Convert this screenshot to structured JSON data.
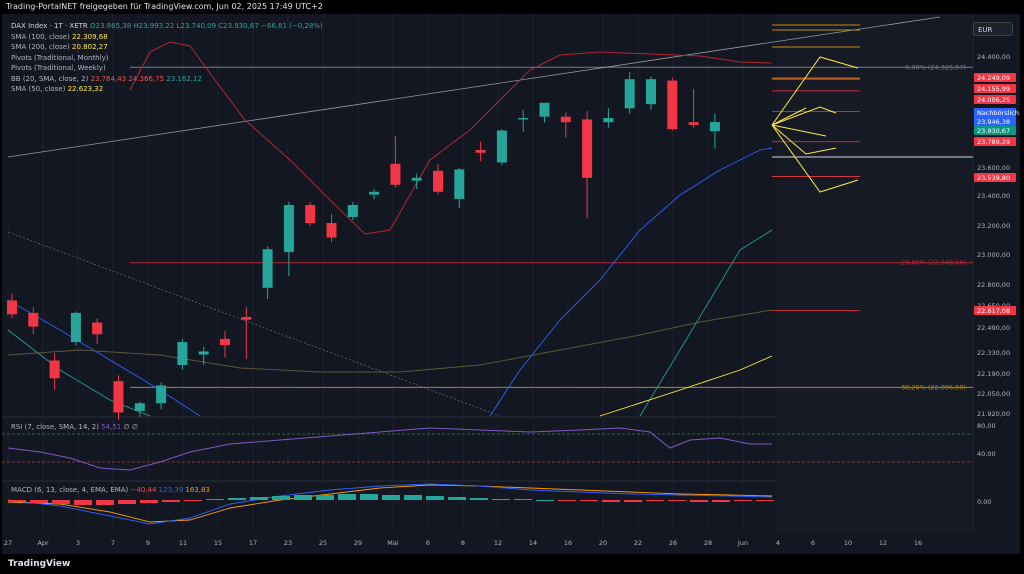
{
  "header": {
    "title": "Trading-PortalNET freigegeben für TradingView.com, Jun 02, 2025 17:49 UTC+2"
  },
  "footer": {
    "brand": "TradingView"
  },
  "legend": {
    "symbol": "DAX Index · 1T · XETR",
    "ohlc": "O23.865,38 H23.993,22 L23.740,09 C23.930,67 −66,81 (−0,28%)",
    "sma100_label": "SMA (100, close)",
    "sma100_value": "22.309,68",
    "sma200_label": "SMA (200, close)",
    "sma200_value": "20.802,27",
    "pivots_monthly": "Pivots (Traditional, Monthly)",
    "pivots_weekly": "Pivots (Traditional, Weekly)",
    "bb_label": "BB (20, SMA, close, 2)",
    "bb_v1": "23.764,43",
    "bb_v2": "24.366,75",
    "bb_v3": "23.162,12",
    "sma50_label": "SMA (50, close)",
    "sma50_value": "22.623,32"
  },
  "currency_button": "EUR",
  "rsi": {
    "label": "RSI (7, close, SMA, 14, 2)",
    "value": "54,51",
    "extra": "∅ ∅",
    "ticks": [
      "80,00",
      "40,00"
    ]
  },
  "macd": {
    "label": "MACD (6, 13, close, 4, EMA, EMA)",
    "v1": "−40,44",
    "v2": "123,39",
    "v3": "163,83",
    "ticks": [
      "0,00"
    ]
  },
  "fib": {
    "f0": "0,00% (24.325,97)",
    "f236": "23,60% (22.948,66)",
    "f382": "38,20% (22.096,60)"
  },
  "price_tags": [
    {
      "text": "24.249,09",
      "color": "#f23645"
    },
    {
      "text": "24.155,99",
      "color": "#f23645"
    },
    {
      "text": "24.006,25",
      "color": "#f23645"
    },
    {
      "text": "Nachbörslich",
      "color": "#2962ff"
    },
    {
      "text": "23.946,38",
      "color": "#2962ff"
    },
    {
      "text": "23.930,67",
      "color": "#089981"
    },
    {
      "text": "23.789,29",
      "color": "#f23645"
    },
    {
      "text": "23.539,80",
      "color": "#f23645"
    },
    {
      "text": "22.617,08",
      "color": "#f23645"
    }
  ],
  "chart_data": {
    "type": "candlestick",
    "title": "DAX Index · 1T · XETR",
    "ylim": [
      21920,
      24540
    ],
    "y_ticks": [
      "24.400,00",
      "23.600,00",
      "23.400,00",
      "23.200,00",
      "23.000,00",
      "22.800,00",
      "22.650,00",
      "22.490,00",
      "22.330,00",
      "22.190,00",
      "22.050,00",
      "21.920,00"
    ],
    "y_tick_values": [
      24400,
      23600,
      23400,
      23200,
      23000,
      22800,
      22650,
      22490,
      22330,
      22190,
      22050,
      21920
    ],
    "x_ticks": [
      "27",
      "Apr",
      "3",
      "7",
      "9",
      "11",
      "15",
      "17",
      "23",
      "25",
      "29",
      "Mai",
      "6",
      "8",
      "12",
      "14",
      "16",
      "20",
      "22",
      "26",
      "28",
      "Jun",
      "4",
      "6",
      "10",
      "12",
      "16"
    ],
    "candles": [
      {
        "o": 22690,
        "h": 22740,
        "l": 22560,
        "c": 22590
      },
      {
        "o": 22600,
        "h": 22640,
        "l": 22450,
        "c": 22500
      },
      {
        "o": 22280,
        "h": 22330,
        "l": 22080,
        "c": 22160
      },
      {
        "o": 22400,
        "h": 22610,
        "l": 22380,
        "c": 22600
      },
      {
        "o": 22530,
        "h": 22560,
        "l": 22390,
        "c": 22450
      },
      {
        "o": 22140,
        "h": 22180,
        "l": 21880,
        "c": 21930
      },
      {
        "o": 21940,
        "h": 22000,
        "l": 21900,
        "c": 21990
      },
      {
        "o": 21990,
        "h": 22130,
        "l": 21950,
        "c": 22110
      },
      {
        "o": 22250,
        "h": 22420,
        "l": 22220,
        "c": 22400
      },
      {
        "o": 22320,
        "h": 22370,
        "l": 22250,
        "c": 22340
      },
      {
        "o": 22420,
        "h": 22470,
        "l": 22300,
        "c": 22380
      },
      {
        "o": 22570,
        "h": 22640,
        "l": 22290,
        "c": 22550
      },
      {
        "o": 22780,
        "h": 23060,
        "l": 22700,
        "c": 23040
      },
      {
        "o": 23020,
        "h": 23360,
        "l": 22860,
        "c": 23340
      },
      {
        "o": 23340,
        "h": 23360,
        "l": 23200,
        "c": 23220
      },
      {
        "o": 23220,
        "h": 23280,
        "l": 23090,
        "c": 23120
      },
      {
        "o": 23260,
        "h": 23360,
        "l": 23240,
        "c": 23340
      },
      {
        "o": 23410,
        "h": 23450,
        "l": 23380,
        "c": 23430
      },
      {
        "o": 23630,
        "h": 23830,
        "l": 23460,
        "c": 23480
      },
      {
        "o": 23510,
        "h": 23560,
        "l": 23450,
        "c": 23530
      },
      {
        "o": 23580,
        "h": 23630,
        "l": 23410,
        "c": 23430
      },
      {
        "o": 23380,
        "h": 23600,
        "l": 23320,
        "c": 23590
      },
      {
        "o": 23730,
        "h": 23790,
        "l": 23650,
        "c": 23710
      },
      {
        "o": 23640,
        "h": 23880,
        "l": 23620,
        "c": 23870
      },
      {
        "o": 23950,
        "h": 24020,
        "l": 23860,
        "c": 23960
      },
      {
        "o": 23970,
        "h": 24060,
        "l": 23930,
        "c": 24070
      },
      {
        "o": 23970,
        "h": 24000,
        "l": 23820,
        "c": 23930
      },
      {
        "o": 23950,
        "h": 24010,
        "l": 23250,
        "c": 23530
      },
      {
        "o": 23930,
        "h": 24030,
        "l": 23890,
        "c": 23960
      },
      {
        "o": 24030,
        "h": 24290,
        "l": 23990,
        "c": 24240
      },
      {
        "o": 24060,
        "h": 24260,
        "l": 24020,
        "c": 24240
      },
      {
        "o": 24230,
        "h": 24250,
        "l": 23870,
        "c": 23880
      },
      {
        "o": 23930,
        "h": 24170,
        "l": 23890,
        "c": 23910
      },
      {
        "o": 23865,
        "h": 23993,
        "l": 23740,
        "c": 23931
      }
    ],
    "fib_levels": [
      {
        "label": "0,00% (24.325,97)",
        "value": 24325.97
      },
      {
        "label": "23,60% (22.948,66)",
        "value": 22948.66
      },
      {
        "label": "38,20% (22.096,60)",
        "value": 22096.6
      }
    ],
    "pivot_levels": [
      24249.09,
      24155.99,
      24006.25,
      23789.29,
      23539.8,
      22617.08
    ],
    "last_price": 23930.67,
    "after_hours": 23946.38,
    "colors": {
      "up": "#26a69a",
      "down": "#f23645",
      "background": "#131722",
      "bb": "#b22833",
      "sma50": "#2962ff",
      "sma100": "#ffeb3b"
    }
  }
}
